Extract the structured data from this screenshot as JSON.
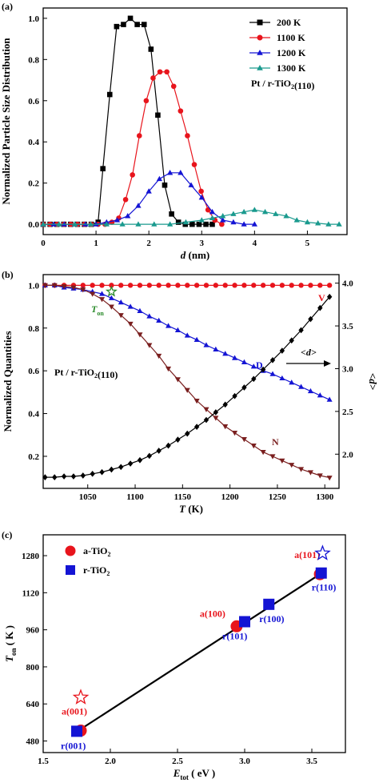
{
  "chart_data": [
    {
      "panel": "(a)",
      "type": "line",
      "xlabel": "d (nm)",
      "ylabel": "Normalized Particle Size Distribution",
      "xlim": [
        0,
        5.75
      ],
      "ylim": [
        -0.05,
        1.05
      ],
      "xticks": [
        "0",
        "1",
        "2",
        "3",
        "4",
        "5"
      ],
      "yticks": [
        "0.0",
        "0.2",
        "0.4",
        "0.6",
        "0.8",
        "1.0"
      ],
      "legend_position": "top-right",
      "annotation": "Pt / r-TiO2(110)",
      "series": [
        {
          "name": "200 K",
          "color": "#000000",
          "marker": "square",
          "x": [
            0.0,
            0.13,
            0.26,
            0.39,
            0.52,
            0.65,
            0.78,
            0.91,
            1.04,
            1.13,
            1.26,
            1.39,
            1.52,
            1.65,
            1.78,
            1.91,
            2.04,
            2.17,
            2.3,
            2.43,
            2.56,
            2.69,
            2.82,
            2.95,
            3.08,
            3.2
          ],
          "y": [
            0,
            0,
            0,
            0,
            0,
            0,
            0,
            0,
            0.01,
            0.27,
            0.63,
            0.96,
            0.97,
            1.0,
            0.97,
            0.97,
            0.85,
            0.53,
            0.19,
            0.05,
            0.01,
            0,
            0,
            0,
            0,
            0
          ]
        },
        {
          "name": "1100 K",
          "color": "#e8141c",
          "marker": "circle",
          "x": [
            0.0,
            0.13,
            0.26,
            0.39,
            0.52,
            0.65,
            0.78,
            0.91,
            1.04,
            1.17,
            1.3,
            1.43,
            1.56,
            1.69,
            1.82,
            1.95,
            2.08,
            2.21,
            2.34,
            2.47,
            2.6,
            2.73,
            2.86,
            2.99,
            3.12,
            3.25,
            3.38
          ],
          "y": [
            0,
            0,
            0,
            0,
            0,
            0,
            0,
            0,
            0,
            0,
            0.01,
            0.03,
            0.12,
            0.24,
            0.43,
            0.6,
            0.71,
            0.74,
            0.74,
            0.67,
            0.55,
            0.43,
            0.29,
            0.16,
            0.07,
            0.02,
            0
          ]
        },
        {
          "name": "1200 K",
          "color": "#1414d4",
          "marker": "triangle-up",
          "x": [
            0.0,
            0.2,
            0.4,
            0.6,
            0.8,
            1.0,
            1.2,
            1.4,
            1.6,
            1.8,
            2.0,
            2.2,
            2.4,
            2.6,
            2.8,
            3.0,
            3.2,
            3.4,
            3.6,
            3.8,
            4.0
          ],
          "y": [
            0,
            0,
            0,
            0,
            0,
            0,
            0.01,
            0.02,
            0.04,
            0.09,
            0.16,
            0.22,
            0.25,
            0.25,
            0.19,
            0.13,
            0.06,
            0.02,
            0.01,
            0,
            0
          ]
        },
        {
          "name": "1300 K",
          "color": "#1a9a8e",
          "marker": "triangle-up",
          "x": [
            0.0,
            0.3,
            0.6,
            0.9,
            1.2,
            1.5,
            1.8,
            2.1,
            2.4,
            2.7,
            3.0,
            3.2,
            3.4,
            3.6,
            3.8,
            4.0,
            4.2,
            4.4,
            4.6,
            4.8,
            5.0,
            5.2,
            5.4,
            5.6
          ],
          "y": [
            0,
            0,
            0,
            0,
            0,
            0,
            0,
            0,
            0,
            0.01,
            0.02,
            0.03,
            0.04,
            0.05,
            0.06,
            0.07,
            0.06,
            0.05,
            0.04,
            0.02,
            0.01,
            0.005,
            0,
            0
          ]
        }
      ]
    },
    {
      "panel": "(b)",
      "type": "line",
      "xlabel": "T (K)",
      "ylabel": "Normalized Quantities",
      "y2label": "<d>",
      "xlim": [
        1003,
        1315
      ],
      "ylim": [
        0.05,
        1.05
      ],
      "y2lim": [
        1.6,
        4.1
      ],
      "xticks": [
        "1050",
        "1100",
        "1150",
        "1200",
        "1250",
        "1300"
      ],
      "yticks": [
        "0.2",
        "0.4",
        "0.6",
        "0.8",
        "1.0"
      ],
      "y2ticks": [
        "2.0",
        "2.5",
        "3.0",
        "3.5",
        "4.0"
      ],
      "annotation": "Pt / r-TiO2(110)",
      "ton_label": "T",
      "ton_sub": "on",
      "ton_point": [
        1075,
        0.97
      ],
      "series": [
        {
          "name": "V",
          "color": "#e8141c",
          "marker": "circle",
          "axis": "left",
          "x": [
            1005,
            1015,
            1025,
            1035,
            1045,
            1055,
            1065,
            1075,
            1085,
            1095,
            1105,
            1115,
            1125,
            1135,
            1145,
            1155,
            1165,
            1175,
            1185,
            1195,
            1205,
            1215,
            1225,
            1235,
            1245,
            1255,
            1265,
            1275,
            1285,
            1295,
            1305
          ],
          "y": [
            1,
            1,
            1,
            1,
            1,
            1,
            1,
            1,
            1,
            1,
            1,
            1,
            1,
            1,
            1,
            1,
            1,
            1,
            1,
            1,
            1,
            1,
            1,
            1,
            1,
            1,
            1,
            1,
            1,
            1,
            1
          ]
        },
        {
          "name": "D",
          "color": "#1414d4",
          "marker": "triangle-up",
          "axis": "left",
          "x": [
            1005,
            1015,
            1025,
            1035,
            1045,
            1055,
            1065,
            1075,
            1085,
            1095,
            1105,
            1115,
            1125,
            1135,
            1145,
            1155,
            1165,
            1175,
            1185,
            1195,
            1205,
            1215,
            1225,
            1235,
            1245,
            1255,
            1265,
            1275,
            1285,
            1295,
            1305
          ],
          "y": [
            1,
            1,
            0.99,
            0.985,
            0.98,
            0.97,
            0.96,
            0.94,
            0.92,
            0.9,
            0.88,
            0.855,
            0.835,
            0.81,
            0.79,
            0.765,
            0.745,
            0.72,
            0.7,
            0.68,
            0.66,
            0.64,
            0.62,
            0.6,
            0.585,
            0.565,
            0.545,
            0.525,
            0.505,
            0.485,
            0.465
          ]
        },
        {
          "name": "N",
          "color": "#7a1f1f",
          "marker": "triangle-down",
          "axis": "left",
          "x": [
            1005,
            1015,
            1025,
            1035,
            1045,
            1055,
            1065,
            1075,
            1085,
            1095,
            1105,
            1115,
            1125,
            1135,
            1145,
            1155,
            1165,
            1175,
            1185,
            1195,
            1205,
            1215,
            1225,
            1235,
            1245,
            1255,
            1265,
            1275,
            1285,
            1295,
            1305
          ],
          "y": [
            1,
            1,
            0.995,
            0.99,
            0.98,
            0.96,
            0.935,
            0.9,
            0.86,
            0.82,
            0.77,
            0.72,
            0.67,
            0.61,
            0.56,
            0.51,
            0.46,
            0.42,
            0.38,
            0.34,
            0.31,
            0.28,
            0.25,
            0.22,
            0.2,
            0.18,
            0.16,
            0.14,
            0.125,
            0.11,
            0.1
          ]
        },
        {
          "name": "<d>",
          "color": "#000000",
          "marker": "diamond",
          "axis": "right",
          "x": [
            1005,
            1015,
            1025,
            1035,
            1045,
            1055,
            1065,
            1075,
            1085,
            1095,
            1105,
            1115,
            1125,
            1135,
            1145,
            1155,
            1165,
            1175,
            1185,
            1195,
            1205,
            1215,
            1225,
            1235,
            1245,
            1255,
            1265,
            1275,
            1285,
            1295,
            1305
          ],
          "y": [
            1.73,
            1.73,
            1.74,
            1.74,
            1.75,
            1.77,
            1.79,
            1.82,
            1.85,
            1.89,
            1.93,
            1.98,
            2.04,
            2.1,
            2.17,
            2.24,
            2.32,
            2.4,
            2.49,
            2.58,
            2.68,
            2.78,
            2.88,
            2.99,
            3.1,
            3.21,
            3.33,
            3.45,
            3.58,
            3.71,
            3.84
          ]
        }
      ]
    },
    {
      "panel": "(c)",
      "type": "scatter",
      "xlabel": "E",
      "xlabel_sub": "tot",
      "xlabel_unit": "( eV )",
      "ylabel": "T",
      "ylabel_sub": "on",
      "ylabel_unit": "( K )",
      "xlim": [
        1.5,
        3.75
      ],
      "ylim": [
        430,
        1370
      ],
      "xticks": [
        "1.5",
        "2.0",
        "2.5",
        "3.0",
        "3.5"
      ],
      "yticks": [
        "480",
        "640",
        "800",
        "960",
        "1120",
        "1280"
      ],
      "legend_position": "top-left",
      "fit_line": {
        "x": [
          1.75,
          3.56
        ],
        "y": [
          520,
          1200
        ]
      },
      "series": [
        {
          "name": "a-TiO",
          "name_sub": "2",
          "color": "#e8141c",
          "marker": "circle",
          "points": [
            {
              "label": "a(001)",
              "x": 1.78,
              "y": 525
            },
            {
              "label": "a(100)",
              "x": 2.94,
              "y": 975
            },
            {
              "label": "a(101)",
              "x": 3.56,
              "y": 1200
            }
          ]
        },
        {
          "name": "r-TiO",
          "name_sub": "2",
          "color": "#1414d4",
          "marker": "square",
          "points": [
            {
              "label": "r(001)",
              "x": 1.75,
              "y": 522
            },
            {
              "label": "r(101)",
              "x": 3.0,
              "y": 995
            },
            {
              "label": "r(100)",
              "x": 3.18,
              "y": 1070
            },
            {
              "label": "r(110)",
              "x": 3.57,
              "y": 1205
            }
          ]
        }
      ],
      "stars": [
        {
          "color": "#e8141c",
          "x": 1.78,
          "y": 668
        },
        {
          "color": "#1414d4",
          "x": 3.58,
          "y": 1290
        }
      ]
    }
  ]
}
